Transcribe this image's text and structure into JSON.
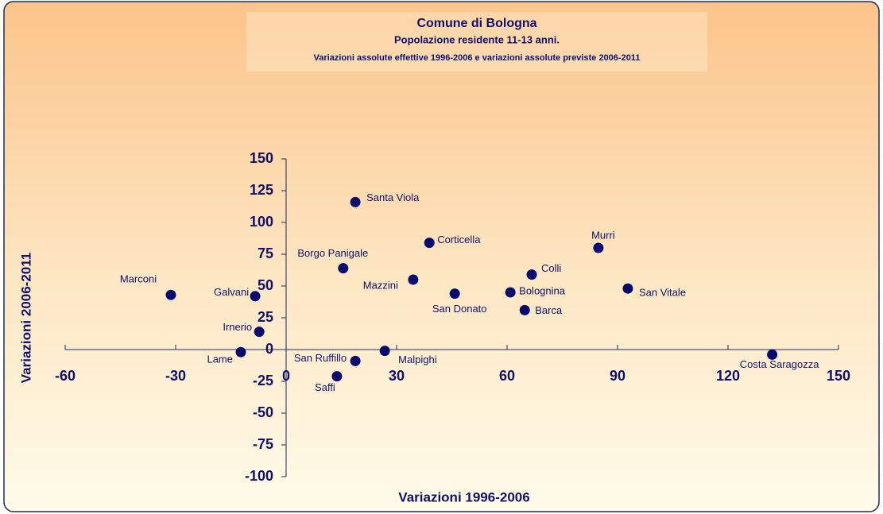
{
  "chart_data": {
    "type": "scatter",
    "title": "Comune di Bologna",
    "subtitle": "Popolazione residente 11-13 anni.",
    "subtitle2": "Variazioni assolute effettive 1996-2006 e variazioni assolute previste 2006-2011",
    "x_label": "Variazioni 1996-2006",
    "y_label": "Variazioni 2006-2011",
    "series": [
      {
        "color": "#0a0a6e",
        "labels": [
          "Santa Viola",
          "Corticella",
          "Murri",
          "Borgo Panigale",
          "Colli",
          "Mazzini",
          "San Donato",
          "Bolognina",
          "San Vitale",
          "Barca",
          "Marconi",
          "Galvani",
          "Irnerio",
          "Lame",
          "San Ruffillo",
          "Malpighi",
          "Saffi",
          "Costa Saragozza"
        ],
        "x": [
          18.8,
          38.9,
          84.8,
          15.5,
          66.7,
          34.5,
          45.8,
          60.9,
          92.8,
          64.8,
          -31.3,
          -8.4,
          -7.3,
          -12.3,
          18.8,
          26.8,
          13.8,
          132
        ],
        "values": [
          116,
          84,
          80,
          64,
          59,
          55,
          44,
          45,
          48,
          31,
          43,
          42,
          14,
          -2,
          -9,
          -1,
          -21,
          -4
        ]
      }
    ],
    "xlim": [
      -60,
      150
    ],
    "xticks": [
      -60,
      -30,
      0,
      30,
      60,
      90,
      120,
      150
    ],
    "ylim": [
      -100,
      150
    ],
    "yticks": [
      -100,
      -75,
      -50,
      -25,
      0,
      25,
      50,
      75,
      100,
      125,
      150
    ]
  }
}
